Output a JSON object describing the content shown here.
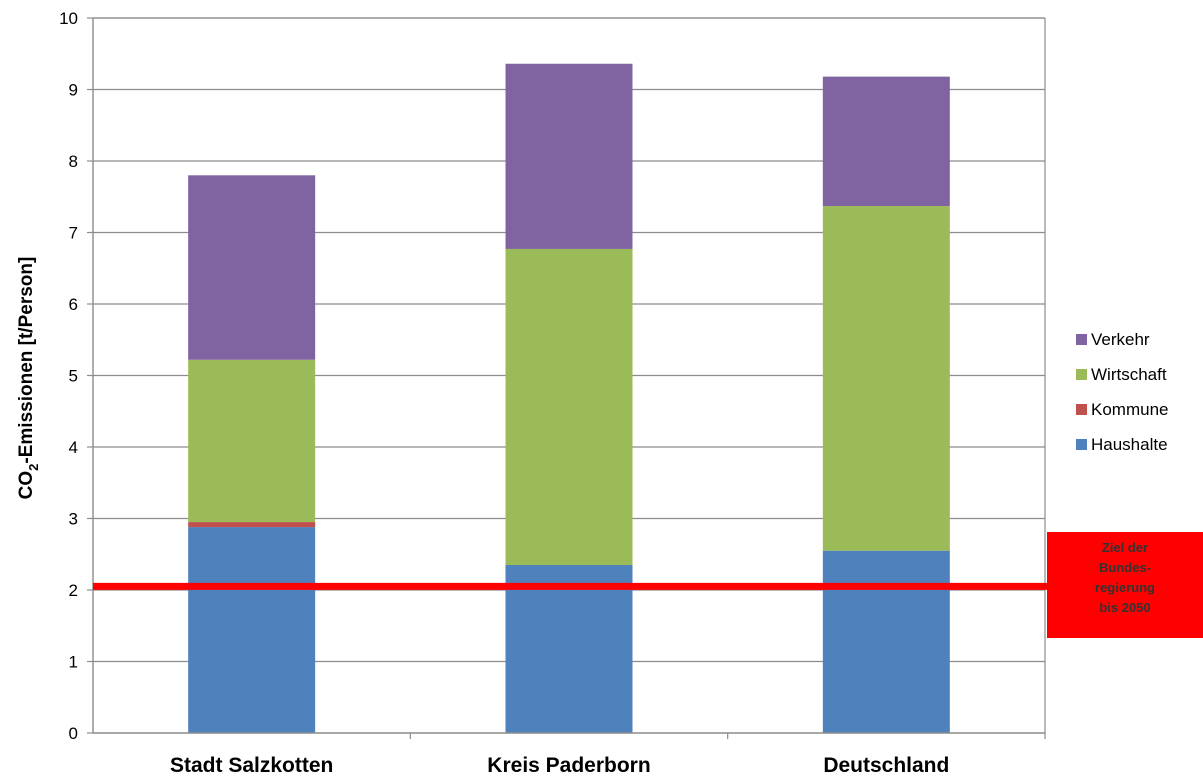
{
  "chart_data": {
    "type": "bar",
    "stacked": true,
    "categories": [
      "Stadt Salzkotten",
      "Kreis Paderborn",
      "Deutschland"
    ],
    "series": [
      {
        "name": "Haushalte",
        "color": "#4f81bd",
        "values": [
          2.88,
          2.35,
          2.55
        ]
      },
      {
        "name": "Kommune",
        "color": "#c0504d",
        "values": [
          0.07,
          0.0,
          0.0
        ]
      },
      {
        "name": "Wirtschaft",
        "color": "#9bbb59",
        "values": [
          2.27,
          4.42,
          4.82
        ]
      },
      {
        "name": "Verkehr",
        "color": "#8064a2",
        "values": [
          2.58,
          2.59,
          1.81
        ]
      }
    ],
    "ylabel_pre": "CO",
    "ylabel_sub": "2",
    "ylabel_post": "-Emissionen  [t/Person]",
    "ylim": [
      0,
      10
    ],
    "yticks": [
      "0",
      "1",
      "2",
      "3",
      "4",
      "5",
      "6",
      "7",
      "8",
      "9",
      "10"
    ],
    "grid": true,
    "legend_position": "right",
    "legend_order": [
      "Verkehr",
      "Wirtschaft",
      "Kommune",
      "Haushalte"
    ],
    "target_line": {
      "value": 2.05,
      "color": "#ff0000",
      "label_lines": [
        "Ziel der",
        "Bundes-",
        "regierung",
        "bis 2050"
      ]
    }
  }
}
